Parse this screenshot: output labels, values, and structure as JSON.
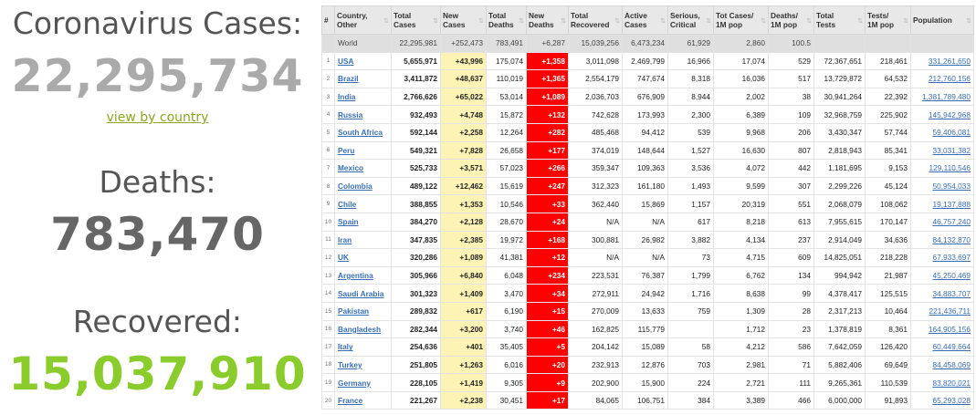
{
  "summary": {
    "cases_label": "Coronavirus Cases:",
    "cases_value": "22,295,734",
    "view_link": "view by country",
    "deaths_label": "Deaths:",
    "deaths_value": "783,470",
    "recovered_label": "Recovered:",
    "recovered_value": "15,037,910"
  },
  "table": {
    "headers": [
      {
        "l1": "#",
        "l2": ""
      },
      {
        "l1": "Country,",
        "l2": "Other"
      },
      {
        "l1": "Total",
        "l2": "Cases"
      },
      {
        "l1": "New",
        "l2": "Cases"
      },
      {
        "l1": "Total",
        "l2": "Deaths"
      },
      {
        "l1": "New",
        "l2": "Deaths"
      },
      {
        "l1": "Total",
        "l2": "Recovered"
      },
      {
        "l1": "Active",
        "l2": "Cases"
      },
      {
        "l1": "Serious,",
        "l2": "Critical"
      },
      {
        "l1": "Tot Cases/",
        "l2": "1M pop"
      },
      {
        "l1": "Deaths/",
        "l2": "1M pop"
      },
      {
        "l1": "Total",
        "l2": "Tests"
      },
      {
        "l1": "Tests/",
        "l2": "1M pop"
      },
      {
        "l1": "Population",
        "l2": ""
      }
    ],
    "world": [
      "",
      "World",
      "22,295,981",
      "+252,473",
      "783,491",
      "+6,287",
      "15,039,256",
      "6,473,234",
      "61,929",
      "2,860",
      "100.5",
      "",
      "",
      ""
    ],
    "rows": [
      [
        "1",
        "USA",
        "5,655,971",
        "+43,996",
        "175,074",
        "+1,358",
        "3,011,098",
        "2,469,799",
        "16,966",
        "17,074",
        "529",
        "72,367,651",
        "218,461",
        "331,261,650"
      ],
      [
        "2",
        "Brazil",
        "3,411,872",
        "+48,637",
        "110,019",
        "+1,365",
        "2,554,179",
        "747,674",
        "8,318",
        "16,036",
        "517",
        "13,729,872",
        "64,532",
        "212,760,156"
      ],
      [
        "3",
        "India",
        "2,766,626",
        "+65,022",
        "53,014",
        "+1,089",
        "2,036,703",
        "676,909",
        "8,944",
        "2,002",
        "38",
        "30,941,264",
        "22,392",
        "1,381,789,480"
      ],
      [
        "4",
        "Russia",
        "932,493",
        "+4,748",
        "15,872",
        "+132",
        "742,628",
        "173,993",
        "2,300",
        "6,389",
        "109",
        "32,968,759",
        "225,902",
        "145,942,968"
      ],
      [
        "5",
        "South Africa",
        "592,144",
        "+2,258",
        "12,264",
        "+282",
        "485,468",
        "94,412",
        "539",
        "9,968",
        "206",
        "3,430,347",
        "57,744",
        "59,406,081"
      ],
      [
        "6",
        "Peru",
        "549,321",
        "+7,828",
        "26,658",
        "+177",
        "374,019",
        "148,644",
        "1,527",
        "16,630",
        "807",
        "2,818,943",
        "85,341",
        "33,031,382"
      ],
      [
        "7",
        "Mexico",
        "525,733",
        "+3,571",
        "57,023",
        "+266",
        "359,347",
        "109,363",
        "3,536",
        "4,072",
        "442",
        "1,181,695",
        "9,153",
        "129,110,546"
      ],
      [
        "8",
        "Colombia",
        "489,122",
        "+12,462",
        "15,619",
        "+247",
        "312,323",
        "161,180",
        "1,493",
        "9,599",
        "307",
        "2,299,226",
        "45,124",
        "50,954,033"
      ],
      [
        "9",
        "Chile",
        "388,855",
        "+1,353",
        "10,546",
        "+33",
        "362,440",
        "15,869",
        "1,157",
        "20,319",
        "551",
        "2,068,079",
        "108,062",
        "19,137,888"
      ],
      [
        "10",
        "Spain",
        "384,270",
        "+2,128",
        "28,670",
        "+24",
        "N/A",
        "N/A",
        "617",
        "8,218",
        "613",
        "7,955,615",
        "170,147",
        "46,757,240"
      ],
      [
        "11",
        "Iran",
        "347,835",
        "+2,385",
        "19,972",
        "+168",
        "300,881",
        "26,982",
        "3,882",
        "4,134",
        "237",
        "2,914,049",
        "34,636",
        "84,132,870"
      ],
      [
        "12",
        "UK",
        "320,286",
        "+1,089",
        "41,381",
        "+12",
        "N/A",
        "N/A",
        "73",
        "4,715",
        "609",
        "14,825,051",
        "218,228",
        "67,933,697"
      ],
      [
        "13",
        "Argentina",
        "305,966",
        "+6,840",
        "6,048",
        "+234",
        "223,531",
        "76,387",
        "1,799",
        "6,762",
        "134",
        "994,942",
        "21,987",
        "45,250,469"
      ],
      [
        "14",
        "Saudi Arabia",
        "301,323",
        "+1,409",
        "3,470",
        "+34",
        "272,911",
        "24,942",
        "1,716",
        "8,638",
        "99",
        "4,378,417",
        "125,515",
        "34,883,707"
      ],
      [
        "15",
        "Pakistan",
        "289,832",
        "+617",
        "6,190",
        "+15",
        "270,009",
        "13,633",
        "759",
        "1,309",
        "28",
        "2,317,213",
        "10,464",
        "221,436,711"
      ],
      [
        "16",
        "Bangladesh",
        "282,344",
        "+3,200",
        "3,740",
        "+46",
        "162,825",
        "115,779",
        "",
        "1,712",
        "23",
        "1,378,819",
        "8,361",
        "164,905,156"
      ],
      [
        "17",
        "Italy",
        "254,636",
        "+401",
        "35,405",
        "+5",
        "204,142",
        "15,089",
        "58",
        "4,212",
        "586",
        "7,642,059",
        "126,420",
        "60,449,664"
      ],
      [
        "18",
        "Turkey",
        "251,805",
        "+1,263",
        "6,016",
        "+20",
        "232,913",
        "12,876",
        "703",
        "2,981",
        "71",
        "5,882,406",
        "69,649",
        "84,458,069"
      ],
      [
        "19",
        "Germany",
        "228,105",
        "+1,419",
        "9,305",
        "+9",
        "202,900",
        "15,900",
        "224",
        "2,721",
        "111",
        "9,265,361",
        "110,539",
        "83,820,021"
      ],
      [
        "20",
        "France",
        "221,267",
        "+2,238",
        "30,451",
        "+17",
        "84,065",
        "106,751",
        "384",
        "3,389",
        "466",
        "6,000,000",
        "91,893",
        "65,293,028"
      ]
    ]
  }
}
